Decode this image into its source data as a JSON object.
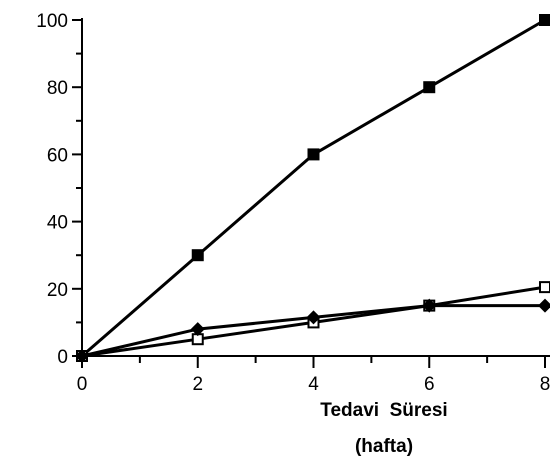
{
  "chart_data": {
    "type": "line",
    "title": "",
    "xlabel_line1": "Tedavi  Süresi",
    "xlabel_line2": "(hafta)",
    "ylabel": "",
    "x": [
      0,
      2,
      4,
      6,
      8
    ],
    "xlim": [
      0,
      8
    ],
    "ylim": [
      0,
      100
    ],
    "x_ticks": [
      0,
      2,
      4,
      6,
      8
    ],
    "x_tick_labels": [
      "0",
      "2",
      "4",
      "6",
      "8"
    ],
    "y_ticks": [
      0,
      20,
      40,
      60,
      80,
      100
    ],
    "y_tick_labels": [
      "0",
      "20",
      "40",
      "60",
      "80",
      "100"
    ],
    "grid": false,
    "series": [
      {
        "marker": "filled-square",
        "values": [
          0,
          30,
          60,
          80,
          100
        ]
      },
      {
        "marker": "open-square",
        "values": [
          0,
          5,
          10,
          15,
          20.5
        ]
      },
      {
        "marker": "filled-diamond",
        "values": [
          0,
          8,
          11.5,
          15,
          15
        ]
      }
    ]
  }
}
